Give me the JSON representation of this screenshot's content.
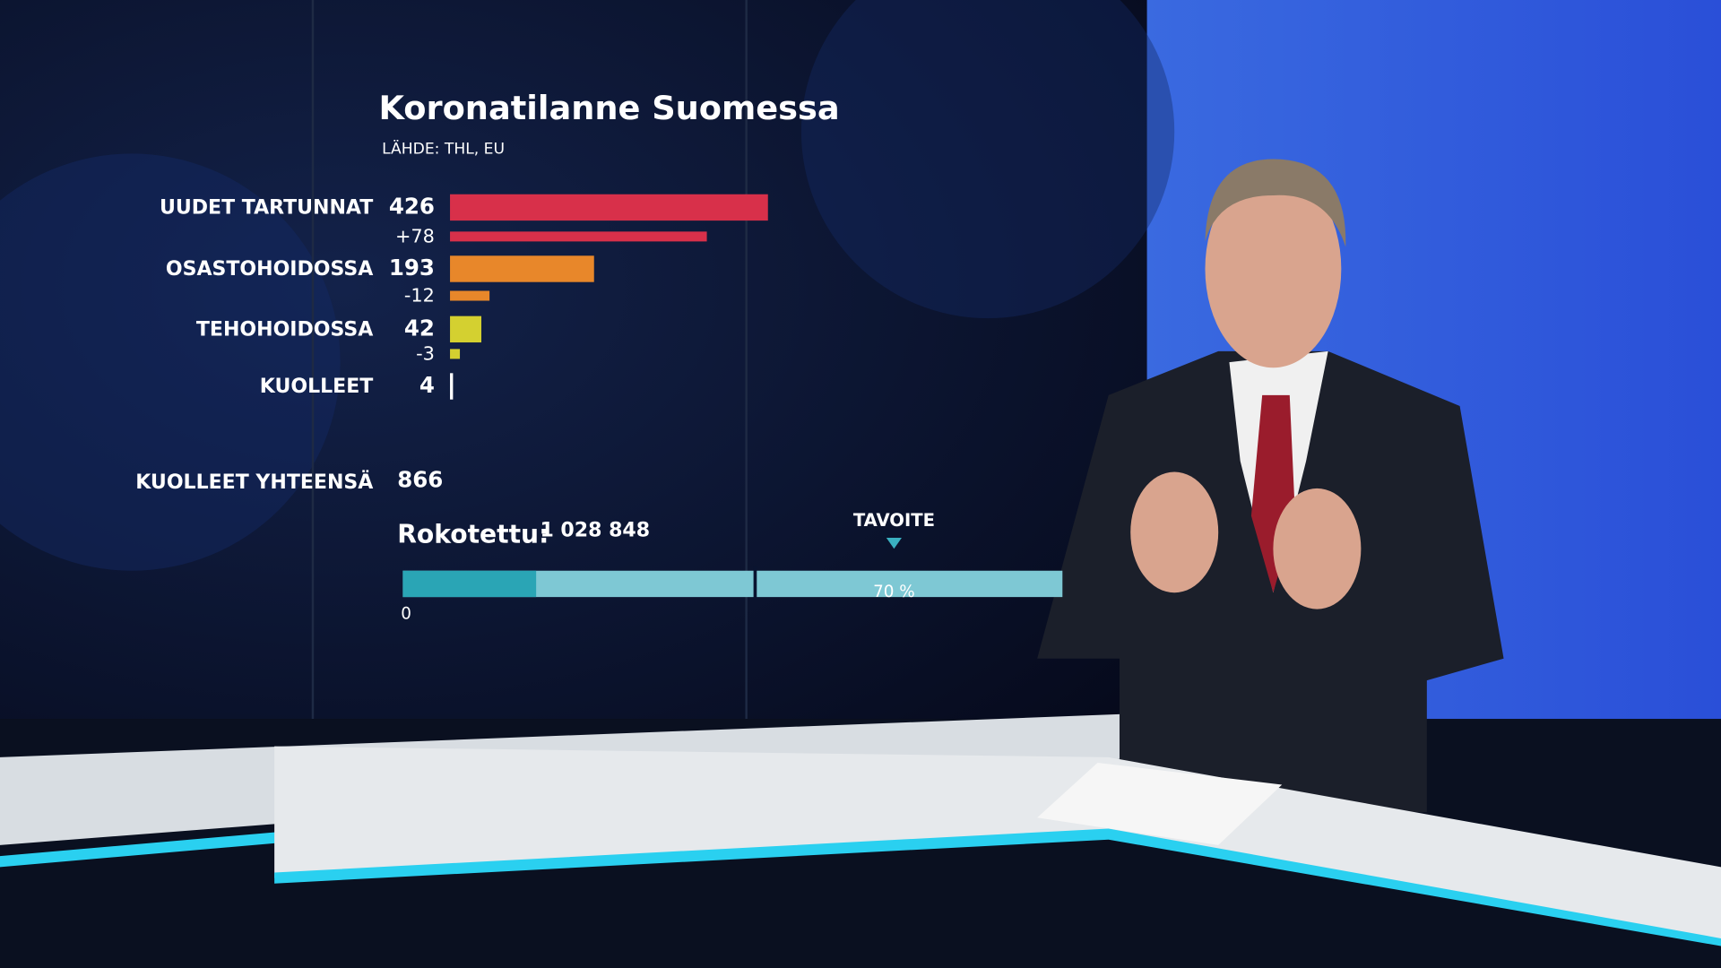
{
  "chart_data": {
    "type": "bar",
    "title": "Koronatilanne Suomessa",
    "subtitle": "LÄHDE: THL, EU",
    "categories": [
      "UUDET TARTUNNAT",
      "OSASTOHOIDOSSA",
      "TEHOHOIDOSSA",
      "KUOLLEET"
    ],
    "values": [
      426,
      193,
      42,
      4
    ],
    "colors": [
      "#d8304a",
      "#e8872a",
      "#d4d030",
      "#ffffff"
    ],
    "xlim": [
      0,
      600
    ],
    "changes": [
      78,
      -12,
      -3,
      null
    ],
    "change_labels": [
      "+78",
      "-12",
      "-3",
      null
    ],
    "change_xlim": [
      0,
      100
    ],
    "total_label": "KUOLLEET YHTEENSÄ",
    "total": 866,
    "vaccinated_label": "Rokotettu:",
    "vaccinated": 1028848,
    "vaccinated_value_label": "1 028 848",
    "vaccinated_pct": 19,
    "target_label": "TAVOITE",
    "progress_xlim": [
      0,
      94
    ],
    "progress_ticks": [
      0,
      {
        "value": 70,
        "label": "70 %"
      }
    ]
  }
}
